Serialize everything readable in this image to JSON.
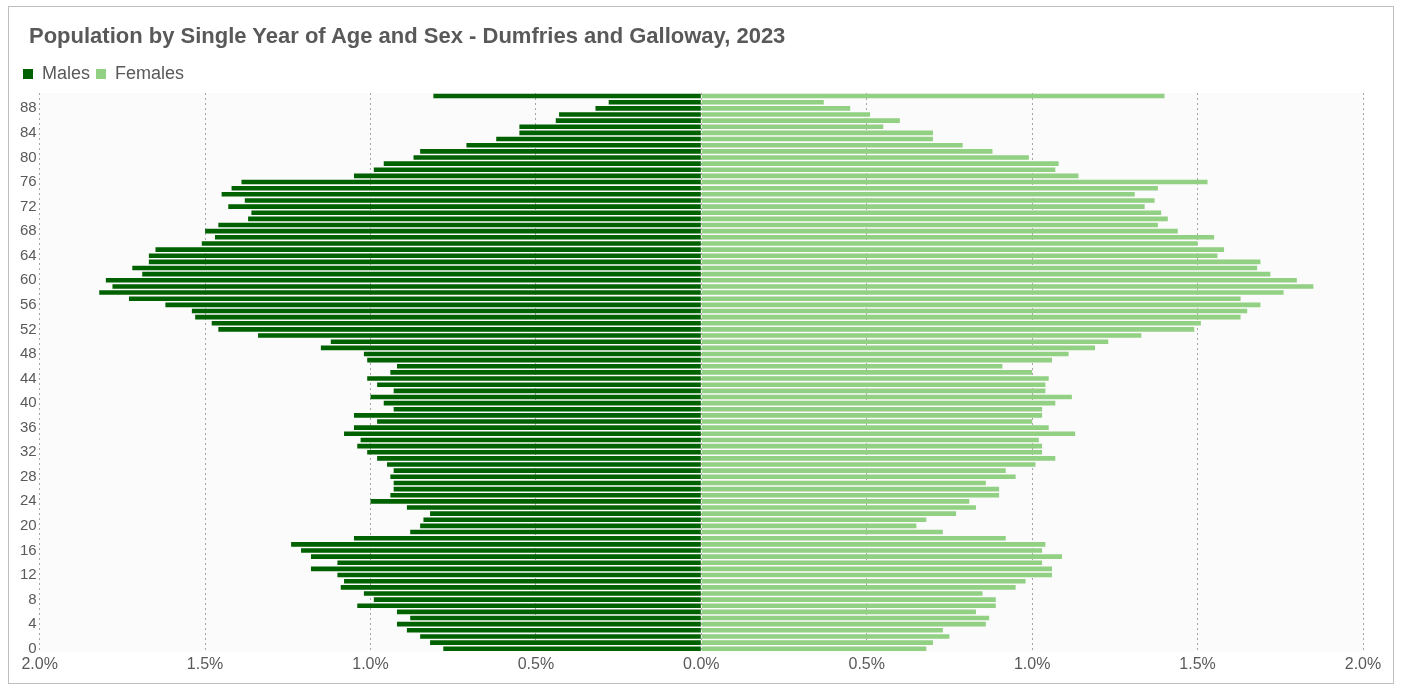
{
  "chart_data": {
    "type": "bar",
    "title": "Population by Single Year of Age and Sex - Dumfries and Galloway, 2023",
    "orientation": "horizontal",
    "stacked": true,
    "categories": [
      null,
      null,
      "88",
      null,
      null,
      null,
      "84",
      null,
      null,
      null,
      "80",
      null,
      null,
      null,
      "76",
      null,
      null,
      null,
      "72",
      null,
      null,
      null,
      "68",
      null,
      null,
      null,
      "64",
      null,
      null,
      null,
      "60",
      null,
      null,
      null,
      "56",
      null,
      null,
      null,
      "52",
      null,
      null,
      null,
      "48",
      null,
      null,
      null,
      "44",
      null,
      null,
      null,
      "40",
      null,
      null,
      null,
      "36",
      null,
      null,
      null,
      "32",
      null,
      null,
      null,
      "28",
      null,
      null,
      null,
      "24",
      null,
      null,
      null,
      "20",
      null,
      null,
      null,
      "16",
      null,
      null,
      null,
      "12",
      null,
      null,
      null,
      "8",
      null,
      null,
      null,
      "4",
      null,
      null,
      null,
      "0"
    ],
    "series": [
      {
        "name": "Males",
        "color": "#006100",
        "values": [
          -0.81,
          -0.28,
          -0.32,
          -0.43,
          -0.44,
          -0.55,
          -0.55,
          -0.62,
          -0.71,
          -0.85,
          -0.87,
          -0.96,
          -0.99,
          -1.05,
          -1.39,
          -1.42,
          -1.45,
          -1.38,
          -1.43,
          -1.36,
          -1.37,
          -1.46,
          -1.5,
          -1.47,
          -1.51,
          -1.65,
          -1.67,
          -1.67,
          -1.72,
          -1.69,
          -1.8,
          -1.78,
          -1.82,
          -1.73,
          -1.62,
          -1.54,
          -1.53,
          -1.48,
          -1.46,
          -1.34,
          -1.12,
          -1.15,
          -1.02,
          -1.01,
          -0.92,
          -0.94,
          -1.01,
          -0.98,
          -0.93,
          -1.0,
          -0.96,
          -0.93,
          -1.05,
          -0.98,
          -1.05,
          -1.08,
          -1.03,
          -1.04,
          -1.01,
          -0.98,
          -0.95,
          -0.93,
          -0.94,
          -0.93,
          -0.93,
          -0.94,
          -1.0,
          -0.89,
          -0.82,
          -0.84,
          -0.85,
          -0.88,
          -1.05,
          -1.24,
          -1.21,
          -1.18,
          -1.1,
          -1.18,
          -1.1,
          -1.08,
          -1.09,
          -1.02,
          -0.99,
          -1.04,
          -0.92,
          -0.88,
          -0.92,
          -0.89,
          -0.85,
          -0.82,
          -0.78
        ]
      },
      {
        "name": "Females",
        "color": "#92d083",
        "values": [
          1.4,
          0.37,
          0.45,
          0.51,
          0.6,
          0.55,
          0.7,
          0.7,
          0.79,
          0.88,
          0.99,
          1.08,
          1.07,
          1.14,
          1.53,
          1.38,
          1.31,
          1.37,
          1.34,
          1.39,
          1.41,
          1.38,
          1.44,
          1.55,
          1.5,
          1.58,
          1.56,
          1.69,
          1.68,
          1.72,
          1.8,
          1.85,
          1.76,
          1.63,
          1.69,
          1.65,
          1.63,
          1.51,
          1.49,
          1.33,
          1.23,
          1.19,
          1.11,
          1.06,
          0.91,
          1.0,
          1.05,
          1.04,
          1.04,
          1.12,
          1.07,
          1.03,
          1.03,
          1.0,
          1.05,
          1.13,
          1.02,
          1.03,
          1.03,
          1.07,
          1.01,
          0.92,
          0.95,
          0.86,
          0.9,
          0.9,
          0.81,
          0.83,
          0.77,
          0.68,
          0.65,
          0.73,
          0.92,
          1.04,
          1.03,
          1.09,
          1.03,
          1.06,
          1.06,
          0.98,
          0.95,
          0.85,
          0.89,
          0.89,
          0.83,
          0.87,
          0.86,
          0.73,
          0.75,
          0.7,
          0.68
        ]
      }
    ],
    "xlim": [
      -2,
      2
    ],
    "xticks": [
      {
        "value": -2,
        "label": "2.0%"
      },
      {
        "value": -1.5,
        "label": "1.5%"
      },
      {
        "value": -1,
        "label": "1.0%"
      },
      {
        "value": -0.5,
        "label": "0.5%"
      },
      {
        "value": 0,
        "label": "0.0%"
      },
      {
        "value": 0.5,
        "label": "0.5%"
      },
      {
        "value": 1,
        "label": "1.0%"
      },
      {
        "value": 1.5,
        "label": "1.5%"
      },
      {
        "value": 2,
        "label": "2.0%"
      }
    ],
    "grid": "x",
    "legend": "top left"
  }
}
